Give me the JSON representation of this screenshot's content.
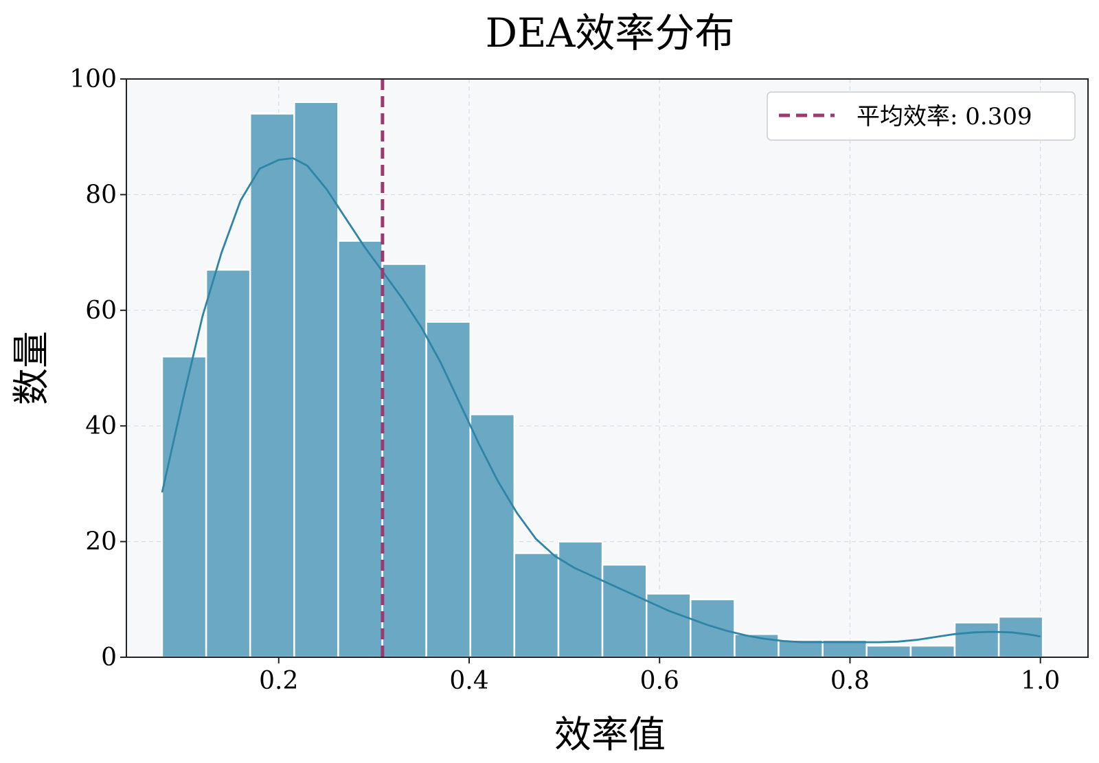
{
  "chart_data": {
    "type": "bar",
    "title": "DEA效率分布",
    "xlabel": "效率值",
    "ylabel": "数量",
    "xlim": [
      0.04,
      1.05
    ],
    "ylim": [
      0,
      100
    ],
    "xticks": [
      "0.2",
      "0.4",
      "0.6",
      "0.8",
      "1.0"
    ],
    "yticks": [
      "0",
      "20",
      "40",
      "60",
      "80",
      "100"
    ],
    "grid": true,
    "bins": [
      {
        "x0": 0.0775,
        "x1": 0.1238,
        "value": 52
      },
      {
        "x0": 0.1238,
        "x1": 0.17,
        "value": 67
      },
      {
        "x0": 0.17,
        "x1": 0.2163,
        "value": 94
      },
      {
        "x0": 0.2163,
        "x1": 0.2625,
        "value": 96
      },
      {
        "x0": 0.2625,
        "x1": 0.3088,
        "value": 72
      },
      {
        "x0": 0.3088,
        "x1": 0.355,
        "value": 68
      },
      {
        "x0": 0.355,
        "x1": 0.4013,
        "value": 58
      },
      {
        "x0": 0.4013,
        "x1": 0.4475,
        "value": 42
      },
      {
        "x0": 0.4475,
        "x1": 0.4938,
        "value": 18
      },
      {
        "x0": 0.4938,
        "x1": 0.54,
        "value": 20
      },
      {
        "x0": 0.54,
        "x1": 0.5863,
        "value": 16
      },
      {
        "x0": 0.5863,
        "x1": 0.6325,
        "value": 11
      },
      {
        "x0": 0.6325,
        "x1": 0.6788,
        "value": 10
      },
      {
        "x0": 0.6788,
        "x1": 0.725,
        "value": 4
      },
      {
        "x0": 0.725,
        "x1": 0.7713,
        "value": 3
      },
      {
        "x0": 0.7713,
        "x1": 0.8175,
        "value": 3
      },
      {
        "x0": 0.8175,
        "x1": 0.8638,
        "value": 2
      },
      {
        "x0": 0.8638,
        "x1": 0.91,
        "value": 2
      },
      {
        "x0": 0.91,
        "x1": 0.9563,
        "value": 6
      },
      {
        "x0": 0.9563,
        "x1": 1.0025,
        "value": 7
      }
    ],
    "kde": {
      "x": [
        0.0775,
        0.1,
        0.12,
        0.14,
        0.16,
        0.18,
        0.2,
        0.215,
        0.23,
        0.25,
        0.27,
        0.29,
        0.31,
        0.33,
        0.35,
        0.37,
        0.39,
        0.41,
        0.43,
        0.45,
        0.47,
        0.49,
        0.51,
        0.53,
        0.55,
        0.57,
        0.59,
        0.61,
        0.63,
        0.65,
        0.67,
        0.69,
        0.71,
        0.73,
        0.75,
        0.77,
        0.79,
        0.81,
        0.83,
        0.85,
        0.87,
        0.89,
        0.91,
        0.93,
        0.95,
        0.97,
        0.99,
        1.0
      ],
      "y": [
        28.5,
        45,
        59,
        70,
        79,
        84.5,
        86,
        86.3,
        85,
        81,
        76,
        71,
        66.5,
        62,
        57,
        51,
        44,
        37,
        30.5,
        25,
        20.5,
        17.5,
        15.5,
        14,
        12.5,
        11,
        9.5,
        8,
        6.8,
        5.6,
        4.6,
        3.8,
        3.2,
        2.8,
        2.6,
        2.6,
        2.6,
        2.6,
        2.6,
        2.7,
        3.0,
        3.5,
        4.0,
        4.3,
        4.4,
        4.3,
        3.9,
        3.6
      ]
    },
    "mean_line": {
      "value": 0.309,
      "label": "平均效率: 0.309"
    },
    "colors": {
      "bar": "#6aa8c3",
      "kde": "#2e85a5",
      "mean": "#9a3a6e",
      "plot_bg": "#f7f8fa"
    }
  }
}
